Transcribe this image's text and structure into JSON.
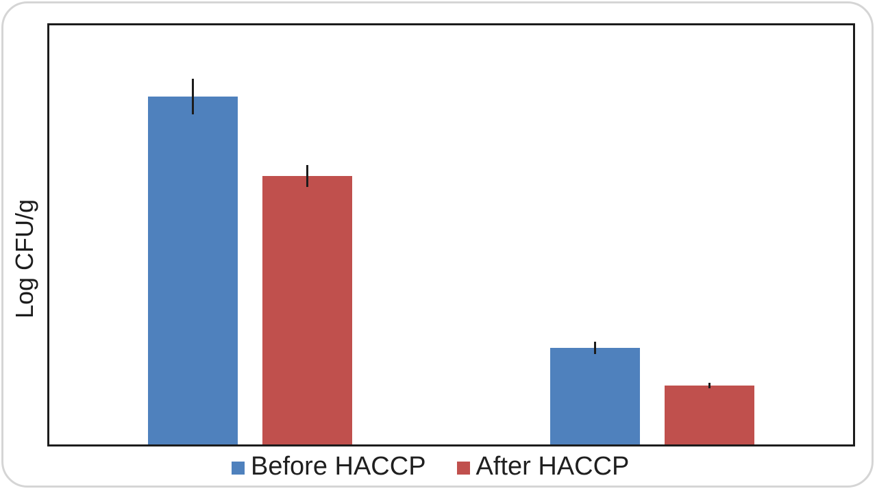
{
  "chart_data": {
    "type": "bar",
    "title": "",
    "xlabel": "",
    "ylabel": "Log CFU/g",
    "categories": [
      "",
      ""
    ],
    "series": [
      {
        "name": "Before HACCP",
        "color": "#4F81BD",
        "values_fraction_of_y_axis": [
          0.83,
          0.23
        ],
        "error_bar_fraction": [
          0.043,
          0.015
        ]
      },
      {
        "name": "After HACCP",
        "color": "#C0504D",
        "values_fraction_of_y_axis": [
          0.64,
          0.14
        ],
        "error_bar_fraction": [
          0.026,
          0.007
        ]
      }
    ],
    "axes_note": "plain black rectangular frame; no tick marks, gridlines, or numeric axis labels visible",
    "ylim": [
      0,
      1
    ],
    "grid": false,
    "legend": {
      "position": "bottom",
      "entries": [
        "Before HACCP",
        "After HACCP"
      ]
    },
    "error_bar_color": "#1c1c1c",
    "frame_color": "#1c1c1c"
  }
}
